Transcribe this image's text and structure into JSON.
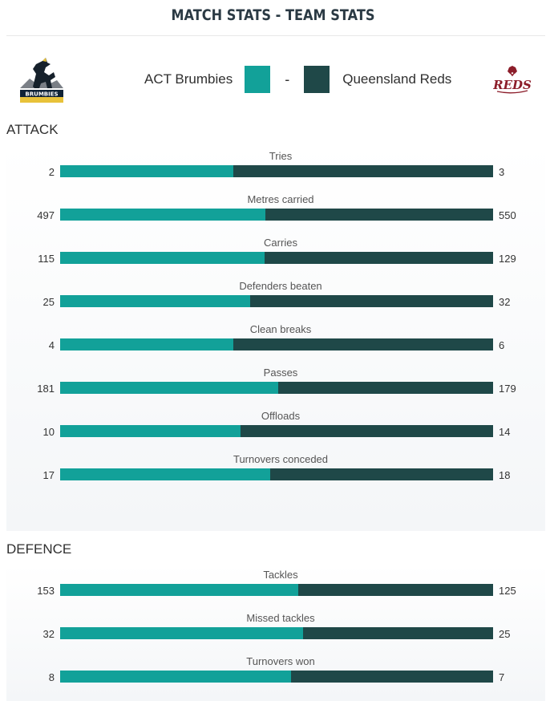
{
  "title": "MATCH STATS - TEAM STATS",
  "teams": {
    "home": {
      "name": "ACT Brumbies",
      "logo": "brumbies-logo",
      "color": "#12a199"
    },
    "away": {
      "name": "Queensland Reds",
      "logo": "reds-logo",
      "color": "#1f4848"
    },
    "separator": "-"
  },
  "sections": {
    "attack": {
      "title": "ATTACK",
      "stats": [
        {
          "label": "Tries",
          "home": 2,
          "away": 3
        },
        {
          "label": "Metres carried",
          "home": 497,
          "away": 550
        },
        {
          "label": "Carries",
          "home": 115,
          "away": 129
        },
        {
          "label": "Defenders beaten",
          "home": 25,
          "away": 32
        },
        {
          "label": "Clean breaks",
          "home": 4,
          "away": 6
        },
        {
          "label": "Passes",
          "home": 181,
          "away": 179
        },
        {
          "label": "Offloads",
          "home": 10,
          "away": 14
        },
        {
          "label": "Turnovers conceded",
          "home": 17,
          "away": 18
        }
      ]
    },
    "defence": {
      "title": "DEFENCE",
      "stats": [
        {
          "label": "Tackles",
          "home": 153,
          "away": 125
        },
        {
          "label": "Missed tackles",
          "home": 32,
          "away": 25
        },
        {
          "label": "Turnovers won",
          "home": 8,
          "away": 7
        }
      ]
    }
  }
}
